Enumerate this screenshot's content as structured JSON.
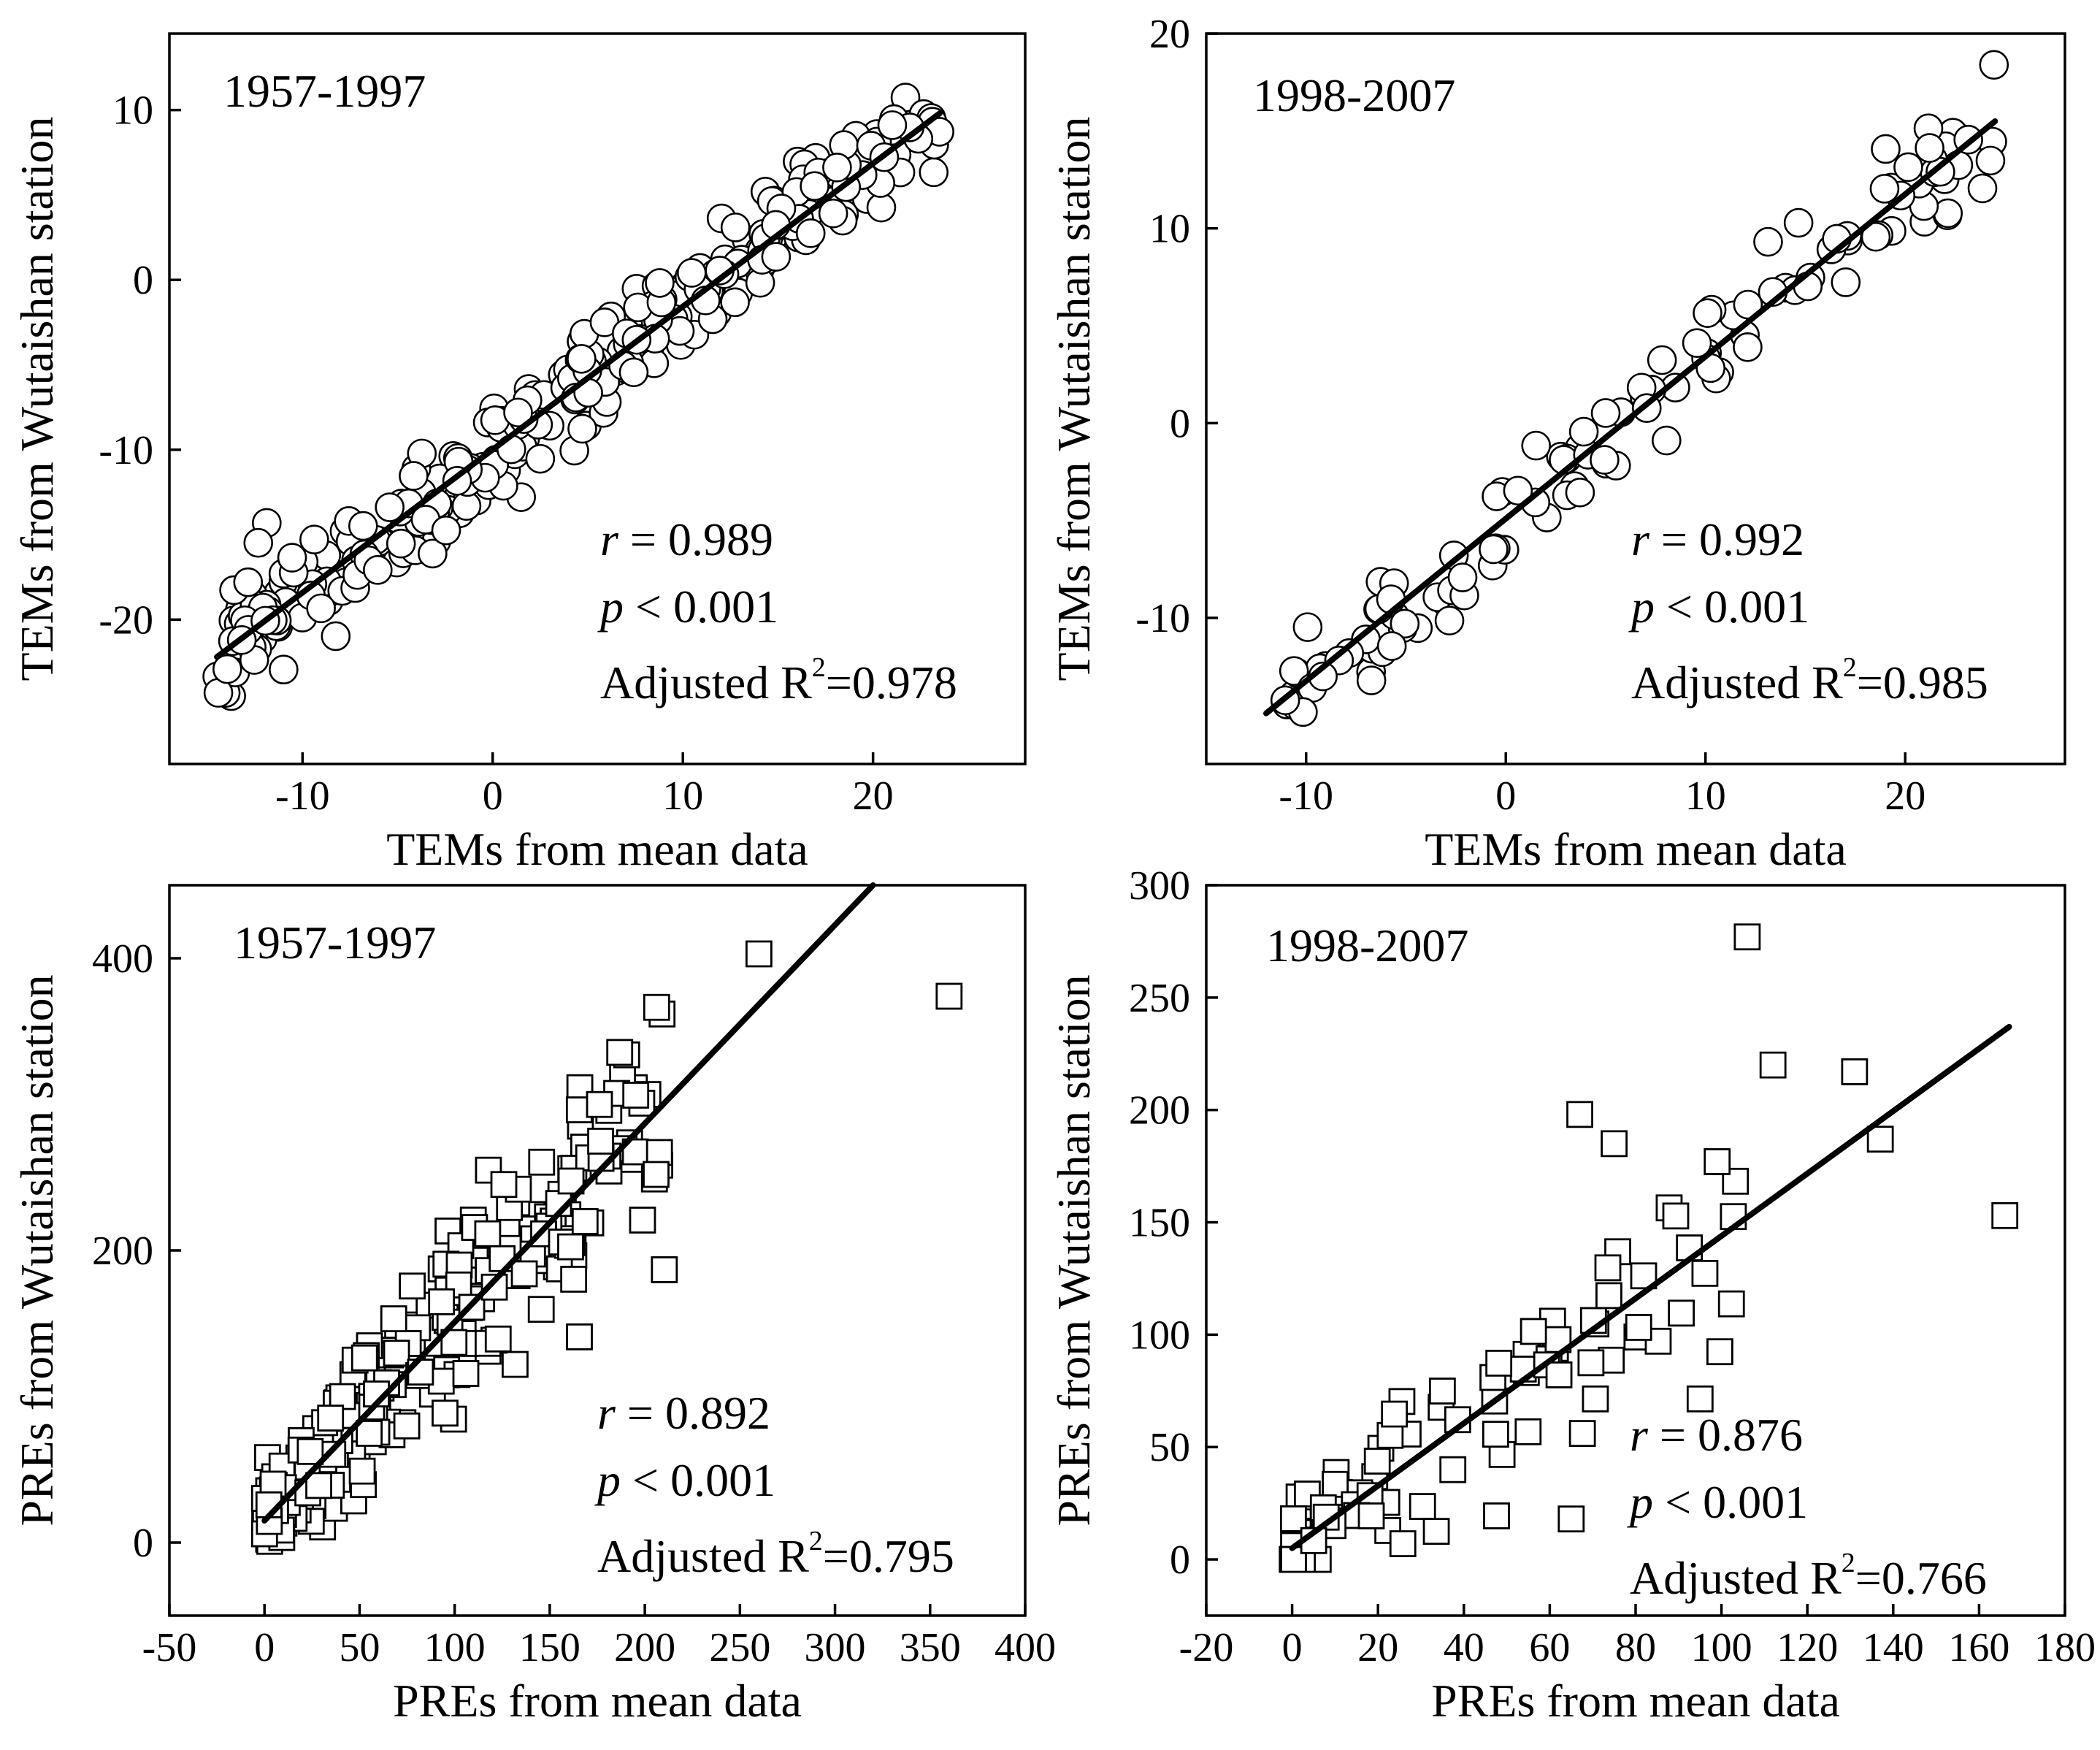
{
  "chart_data": [
    {
      "type": "scatter",
      "panel": "top-left",
      "period_label": "1957-1997",
      "xlabel": "TEMs from mean data",
      "ylabel": "TEMs from Wutaishan station",
      "xlim": [
        -17,
        28
      ],
      "ylim": [
        -28.5,
        14.5
      ],
      "xticks": [
        -10,
        0,
        10,
        20
      ],
      "yticks": [
        -20,
        -10,
        0,
        10
      ],
      "marker": "circle",
      "fit_line": {
        "x": [
          -14.5,
          23.5
        ],
        "y": [
          -22.2,
          9.8
        ]
      },
      "stats": {
        "r_label": "r",
        "r_text": " = 0.989",
        "p_label": "p",
        "p_text": " < 0.001",
        "r2_prefix": "Adjusted R",
        "r2_text": "=0.978"
      },
      "seed": 11,
      "n_points": 320,
      "noise": 1.6
    },
    {
      "type": "scatter",
      "panel": "top-right",
      "period_label": "1998-2007",
      "xlabel": "TEMs from mean data",
      "ylabel": "TEMs from Wutaishan station",
      "xlim": [
        -15,
        28
      ],
      "ylim": [
        -17.5,
        20
      ],
      "xticks": [
        -10,
        0,
        10,
        20
      ],
      "yticks": [
        -10,
        0,
        10,
        20
      ],
      "marker": "circle",
      "fit_line": {
        "x": [
          -12,
          24.5
        ],
        "y": [
          -14.9,
          15.5
        ]
      },
      "stats": {
        "r_label": "r",
        "r_text": " = 0.992",
        "p_label": "p",
        "p_text": " < 0.001",
        "r2_prefix": "Adjusted R",
        "r2_text": "=0.985"
      },
      "seed": 23,
      "n_points": 120,
      "noise": 1.3
    },
    {
      "type": "scatter",
      "panel": "bottom-left",
      "period_label": "1957-1997",
      "xlabel": "PREs from mean data",
      "ylabel": "PREs from Wutaishan station",
      "xlim": [
        -50,
        400
      ],
      "ylim": [
        -50,
        450
      ],
      "xticks": [
        -50,
        0,
        50,
        100,
        150,
        200,
        250,
        300,
        350,
        400
      ],
      "yticks": [
        0,
        200,
        400
      ],
      "marker": "square",
      "fit_line": {
        "x": [
          0,
          320
        ],
        "y": [
          15,
          450
        ]
      },
      "stats": {
        "r_label": "r",
        "r_text": " = 0.892",
        "p_label": "p",
        "p_text": " < 0.001",
        "r2_prefix": "Adjusted R",
        "r2_text": "=0.795"
      },
      "outliers": [
        [
          260,
          403
        ],
        [
          360,
          374
        ]
      ],
      "seed": 37,
      "n_points": 300,
      "noise": 38
    },
    {
      "type": "scatter",
      "panel": "bottom-right",
      "period_label": "1998-2007",
      "xlabel": "PREs from mean data",
      "ylabel": "PREs from Wutaishan station",
      "xlim": [
        -20,
        180
      ],
      "ylim": [
        -25,
        300
      ],
      "xticks": [
        -20,
        0,
        20,
        40,
        60,
        80,
        100,
        120,
        140,
        160,
        180
      ],
      "yticks": [
        0,
        50,
        100,
        150,
        200,
        250,
        300
      ],
      "marker": "square",
      "fit_line": {
        "x": [
          0,
          167
        ],
        "y": [
          5,
          237
        ]
      },
      "stats": {
        "r_label": "r",
        "r_text": " = 0.876",
        "p_label": "p",
        "p_text": " < 0.001",
        "r2_prefix": "Adjusted R",
        "r2_text": "=0.766"
      },
      "outliers": [
        [
          106,
          277
        ],
        [
          112,
          220
        ],
        [
          131,
          217
        ],
        [
          137,
          187
        ],
        [
          166,
          153
        ],
        [
          67,
          198
        ],
        [
          75,
          185
        ],
        [
          99,
          177
        ],
        [
          65,
          18
        ]
      ],
      "seed": 53,
      "n_points": 90,
      "noise": 26
    }
  ]
}
